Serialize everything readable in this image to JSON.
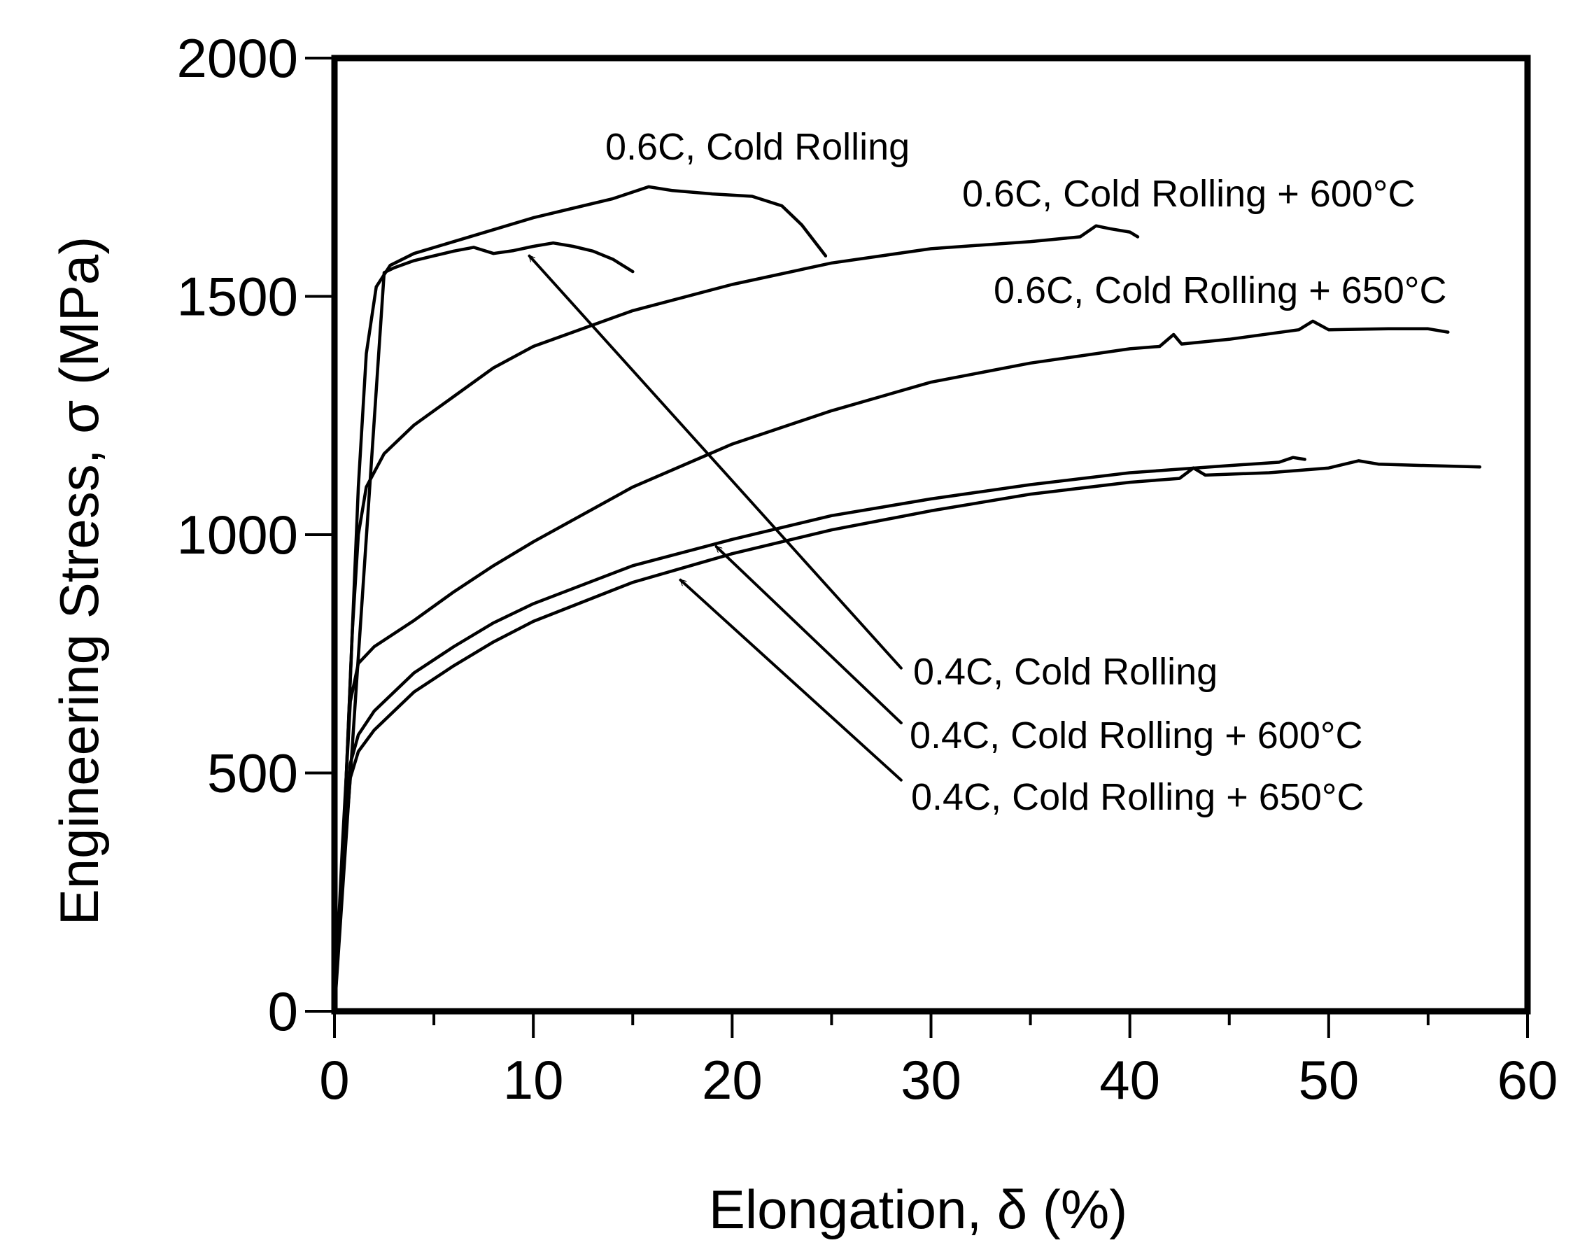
{
  "chart_data": {
    "type": "line",
    "title": "",
    "xlabel": "Elongation, δ (%)",
    "ylabel": "Engineering Stress, σ (MPa)",
    "xlim": [
      0,
      60
    ],
    "ylim": [
      0,
      2000
    ],
    "x_ticks": [
      0,
      10,
      20,
      30,
      40,
      50,
      60
    ],
    "y_ticks": [
      0,
      500,
      1000,
      1500,
      2000
    ],
    "grid": false,
    "series": [
      {
        "name": "0.6C, Cold Rolling",
        "points": [
          [
            0,
            0
          ],
          [
            0.4,
            300
          ],
          [
            0.8,
            700
          ],
          [
            1.2,
            1100
          ],
          [
            1.6,
            1380
          ],
          [
            2.1,
            1520
          ],
          [
            2.8,
            1565
          ],
          [
            4,
            1590
          ],
          [
            6,
            1615
          ],
          [
            8,
            1640
          ],
          [
            10,
            1665
          ],
          [
            12,
            1685
          ],
          [
            14,
            1705
          ],
          [
            15.8,
            1730
          ],
          [
            17,
            1722
          ],
          [
            19,
            1715
          ],
          [
            21,
            1710
          ],
          [
            22.5,
            1690
          ],
          [
            23.5,
            1650
          ],
          [
            24.7,
            1585
          ]
        ]
      },
      {
        "name": "0.6C, Cold Rolling + 600°C",
        "points": [
          [
            0,
            0
          ],
          [
            0.5,
            400
          ],
          [
            0.9,
            800
          ],
          [
            1.2,
            1000
          ],
          [
            1.6,
            1100
          ],
          [
            2.5,
            1170
          ],
          [
            4,
            1230
          ],
          [
            6,
            1290
          ],
          [
            8,
            1350
          ],
          [
            10,
            1395
          ],
          [
            15,
            1470
          ],
          [
            20,
            1525
          ],
          [
            25,
            1570
          ],
          [
            30,
            1600
          ],
          [
            35,
            1615
          ],
          [
            37.5,
            1625
          ],
          [
            38.3,
            1648
          ],
          [
            39,
            1642
          ],
          [
            40,
            1635
          ],
          [
            40.4,
            1625
          ]
        ]
      },
      {
        "name": "0.6C, Cold Rolling + 650°C",
        "points": [
          [
            0,
            0
          ],
          [
            0.4,
            350
          ],
          [
            0.8,
            650
          ],
          [
            1.2,
            730
          ],
          [
            2,
            765
          ],
          [
            4,
            820
          ],
          [
            6,
            880
          ],
          [
            8,
            935
          ],
          [
            10,
            985
          ],
          [
            15,
            1100
          ],
          [
            20,
            1190
          ],
          [
            25,
            1260
          ],
          [
            30,
            1320
          ],
          [
            35,
            1360
          ],
          [
            40,
            1390
          ],
          [
            41.5,
            1395
          ],
          [
            42.2,
            1420
          ],
          [
            42.6,
            1400
          ],
          [
            45,
            1410
          ],
          [
            48.5,
            1430
          ],
          [
            49.2,
            1448
          ],
          [
            50,
            1430
          ],
          [
            53,
            1432
          ],
          [
            55,
            1432
          ],
          [
            56,
            1425
          ]
        ]
      },
      {
        "name": "0.4C, Cold Rolling",
        "points": [
          [
            0,
            0
          ],
          [
            2.5,
            1550
          ],
          [
            3,
            1560
          ],
          [
            4,
            1575
          ],
          [
            5,
            1585
          ],
          [
            6,
            1595
          ],
          [
            7,
            1603
          ],
          [
            8,
            1590
          ],
          [
            9,
            1596
          ],
          [
            10,
            1605
          ],
          [
            11,
            1612
          ],
          [
            12,
            1605
          ],
          [
            13,
            1595
          ],
          [
            14,
            1578
          ],
          [
            15,
            1552
          ]
        ]
      },
      {
        "name": "0.4C, Cold Rolling + 600°C",
        "points": [
          [
            0,
            0
          ],
          [
            0.4,
            300
          ],
          [
            0.8,
            520
          ],
          [
            1.2,
            580
          ],
          [
            2,
            630
          ],
          [
            4,
            710
          ],
          [
            6,
            765
          ],
          [
            8,
            815
          ],
          [
            10,
            855
          ],
          [
            15,
            935
          ],
          [
            20,
            990
          ],
          [
            25,
            1040
          ],
          [
            30,
            1075
          ],
          [
            35,
            1105
          ],
          [
            40,
            1130
          ],
          [
            45,
            1145
          ],
          [
            47.5,
            1152
          ],
          [
            48.2,
            1162
          ],
          [
            48.8,
            1158
          ]
        ]
      },
      {
        "name": "0.4C, Cold Rolling + 650°C",
        "points": [
          [
            0,
            0
          ],
          [
            0.4,
            280
          ],
          [
            0.8,
            490
          ],
          [
            1.2,
            545
          ],
          [
            2,
            590
          ],
          [
            4,
            670
          ],
          [
            6,
            725
          ],
          [
            8,
            775
          ],
          [
            10,
            818
          ],
          [
            15,
            900
          ],
          [
            20,
            960
          ],
          [
            25,
            1010
          ],
          [
            30,
            1050
          ],
          [
            35,
            1085
          ],
          [
            40,
            1110
          ],
          [
            42.5,
            1118
          ],
          [
            43.2,
            1140
          ],
          [
            43.8,
            1125
          ],
          [
            47,
            1130
          ],
          [
            50,
            1140
          ],
          [
            51.5,
            1155
          ],
          [
            52.5,
            1148
          ],
          [
            55,
            1145
          ],
          [
            57.6,
            1142
          ]
        ]
      }
    ],
    "annotations": [
      {
        "text": "0.6C, Cold Rolling",
        "target_series": "0.6C, Cold Rolling",
        "arrow": false
      },
      {
        "text": "0.6C, Cold Rolling + 600°C",
        "target_series": "0.6C, Cold Rolling + 600°C",
        "arrow": false
      },
      {
        "text": "0.6C, Cold Rolling + 650°C",
        "target_series": "0.6C, Cold Rolling + 650°C",
        "arrow": false
      },
      {
        "text": "0.4C, Cold Rolling",
        "target_series": "0.4C, Cold Rolling",
        "arrow": true,
        "arrow_tip": [
          9.8,
          1585
        ],
        "arrow_tail": [
          28.5,
          720
        ]
      },
      {
        "text": "0.4C, Cold Rolling + 600°C",
        "target_series": "0.4C, Cold Rolling + 600°C",
        "arrow": true,
        "arrow_tip": [
          19.2,
          975
        ],
        "arrow_tail": [
          28.5,
          605
        ]
      },
      {
        "text": "0.4C, Cold Rolling + 650°C",
        "target_series": "0.4C, Cold Rolling + 650°C",
        "arrow": true,
        "arrow_tip": [
          17.4,
          905
        ],
        "arrow_tail": [
          28.5,
          485
        ]
      }
    ]
  }
}
